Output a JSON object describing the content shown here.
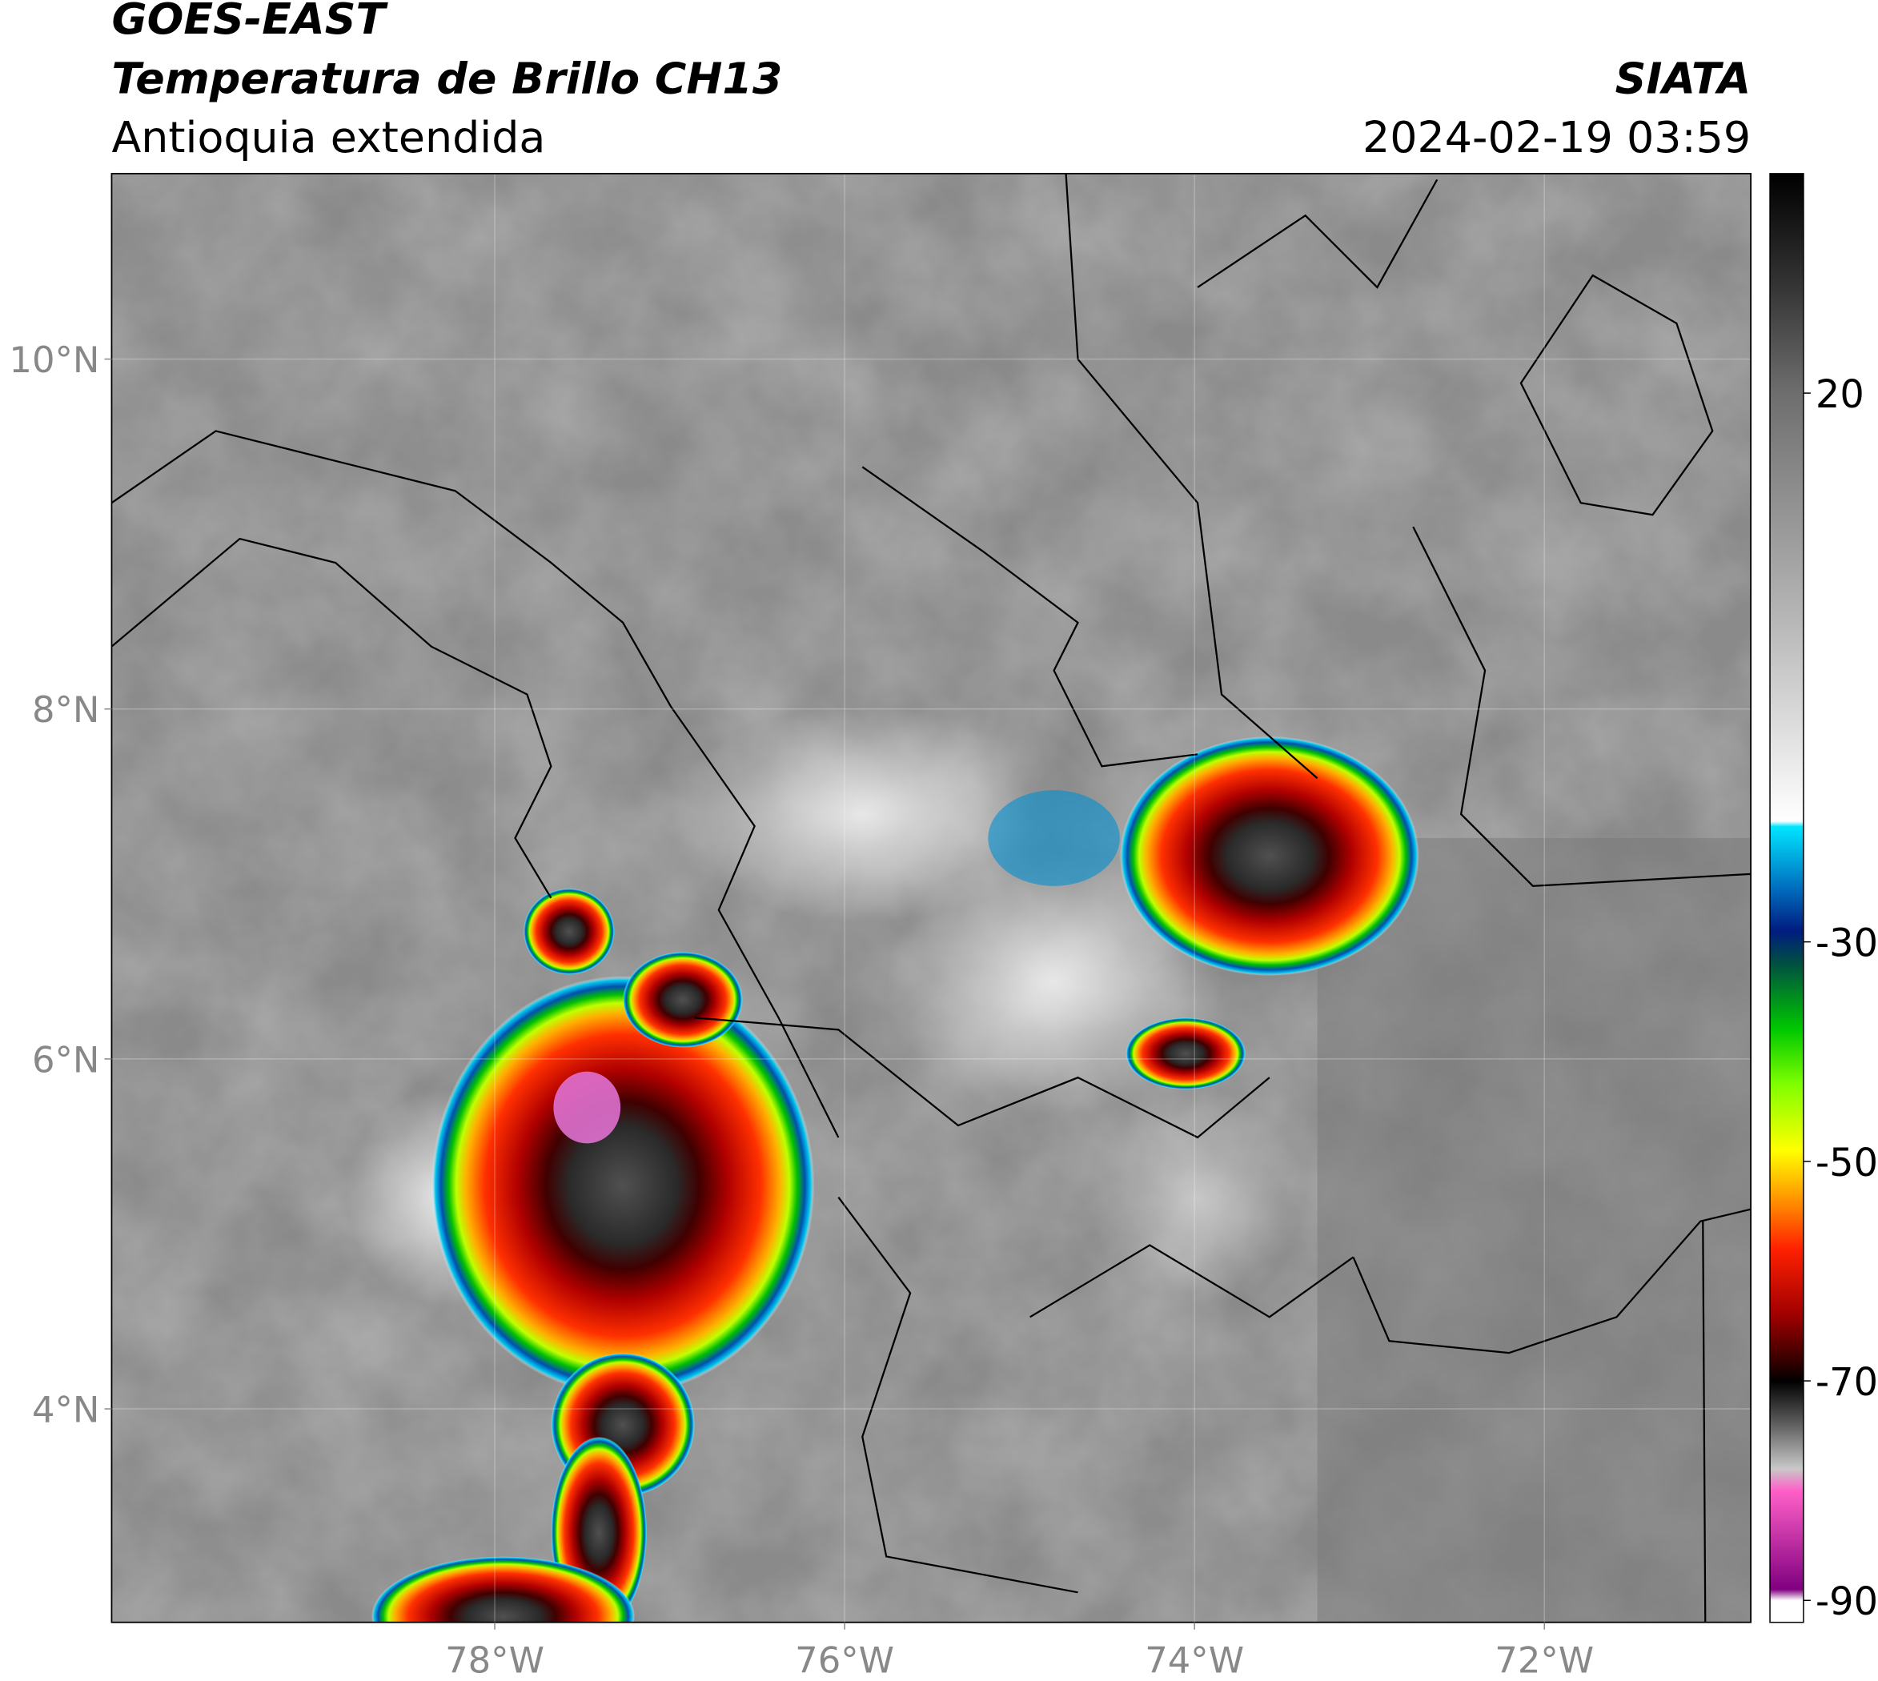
{
  "header": {
    "title": "GOES-EAST",
    "subtitle": "Temperatura de Brillo CH13",
    "region": "Antioquia extendida",
    "source": "SIATA",
    "datetime": "2024-02-19 03:59"
  },
  "map": {
    "xlim": [
      -80.19,
      -70.82
    ],
    "ylim": [
      2.78,
      11.06
    ],
    "xticks": [
      {
        "value": -78,
        "label": "78°W"
      },
      {
        "value": -76,
        "label": "76°W"
      },
      {
        "value": -74,
        "label": "74°W"
      },
      {
        "value": -72,
        "label": "72°W"
      }
    ],
    "yticks": [
      {
        "value": 4,
        "label": "4°N"
      },
      {
        "value": 6,
        "label": "6°N"
      },
      {
        "value": 8,
        "label": "8°N"
      },
      {
        "value": 10,
        "label": "10°N"
      }
    ],
    "grid": true
  },
  "colorbar": {
    "ylim": [
      -92,
      40
    ],
    "yticks": [
      -90,
      -70,
      -50,
      -30,
      20
    ],
    "stops": [
      {
        "value": 40,
        "color": "#000000"
      },
      {
        "value": 30,
        "color": "#333333"
      },
      {
        "value": 20,
        "color": "#6e6e6e"
      },
      {
        "value": 0,
        "color": "#b4b4b4"
      },
      {
        "value": -19,
        "color": "#ffffff"
      },
      {
        "value": -19.5,
        "color": "#00e5ff"
      },
      {
        "value": -25,
        "color": "#0070c0"
      },
      {
        "value": -29,
        "color": "#001c80"
      },
      {
        "value": -32,
        "color": "#005040"
      },
      {
        "value": -38,
        "color": "#00c800"
      },
      {
        "value": -43,
        "color": "#80ff00"
      },
      {
        "value": -49,
        "color": "#ffff00"
      },
      {
        "value": -53,
        "color": "#ffa000"
      },
      {
        "value": -58,
        "color": "#ff2000"
      },
      {
        "value": -64,
        "color": "#a00000"
      },
      {
        "value": -69,
        "color": "#200000"
      },
      {
        "value": -70,
        "color": "#000000"
      },
      {
        "value": -74,
        "color": "#606060"
      },
      {
        "value": -78,
        "color": "#c8c8c8"
      },
      {
        "value": -80,
        "color": "#ff60c8"
      },
      {
        "value": -89,
        "color": "#800080"
      },
      {
        "value": -90,
        "color": "#ffffff"
      }
    ]
  }
}
